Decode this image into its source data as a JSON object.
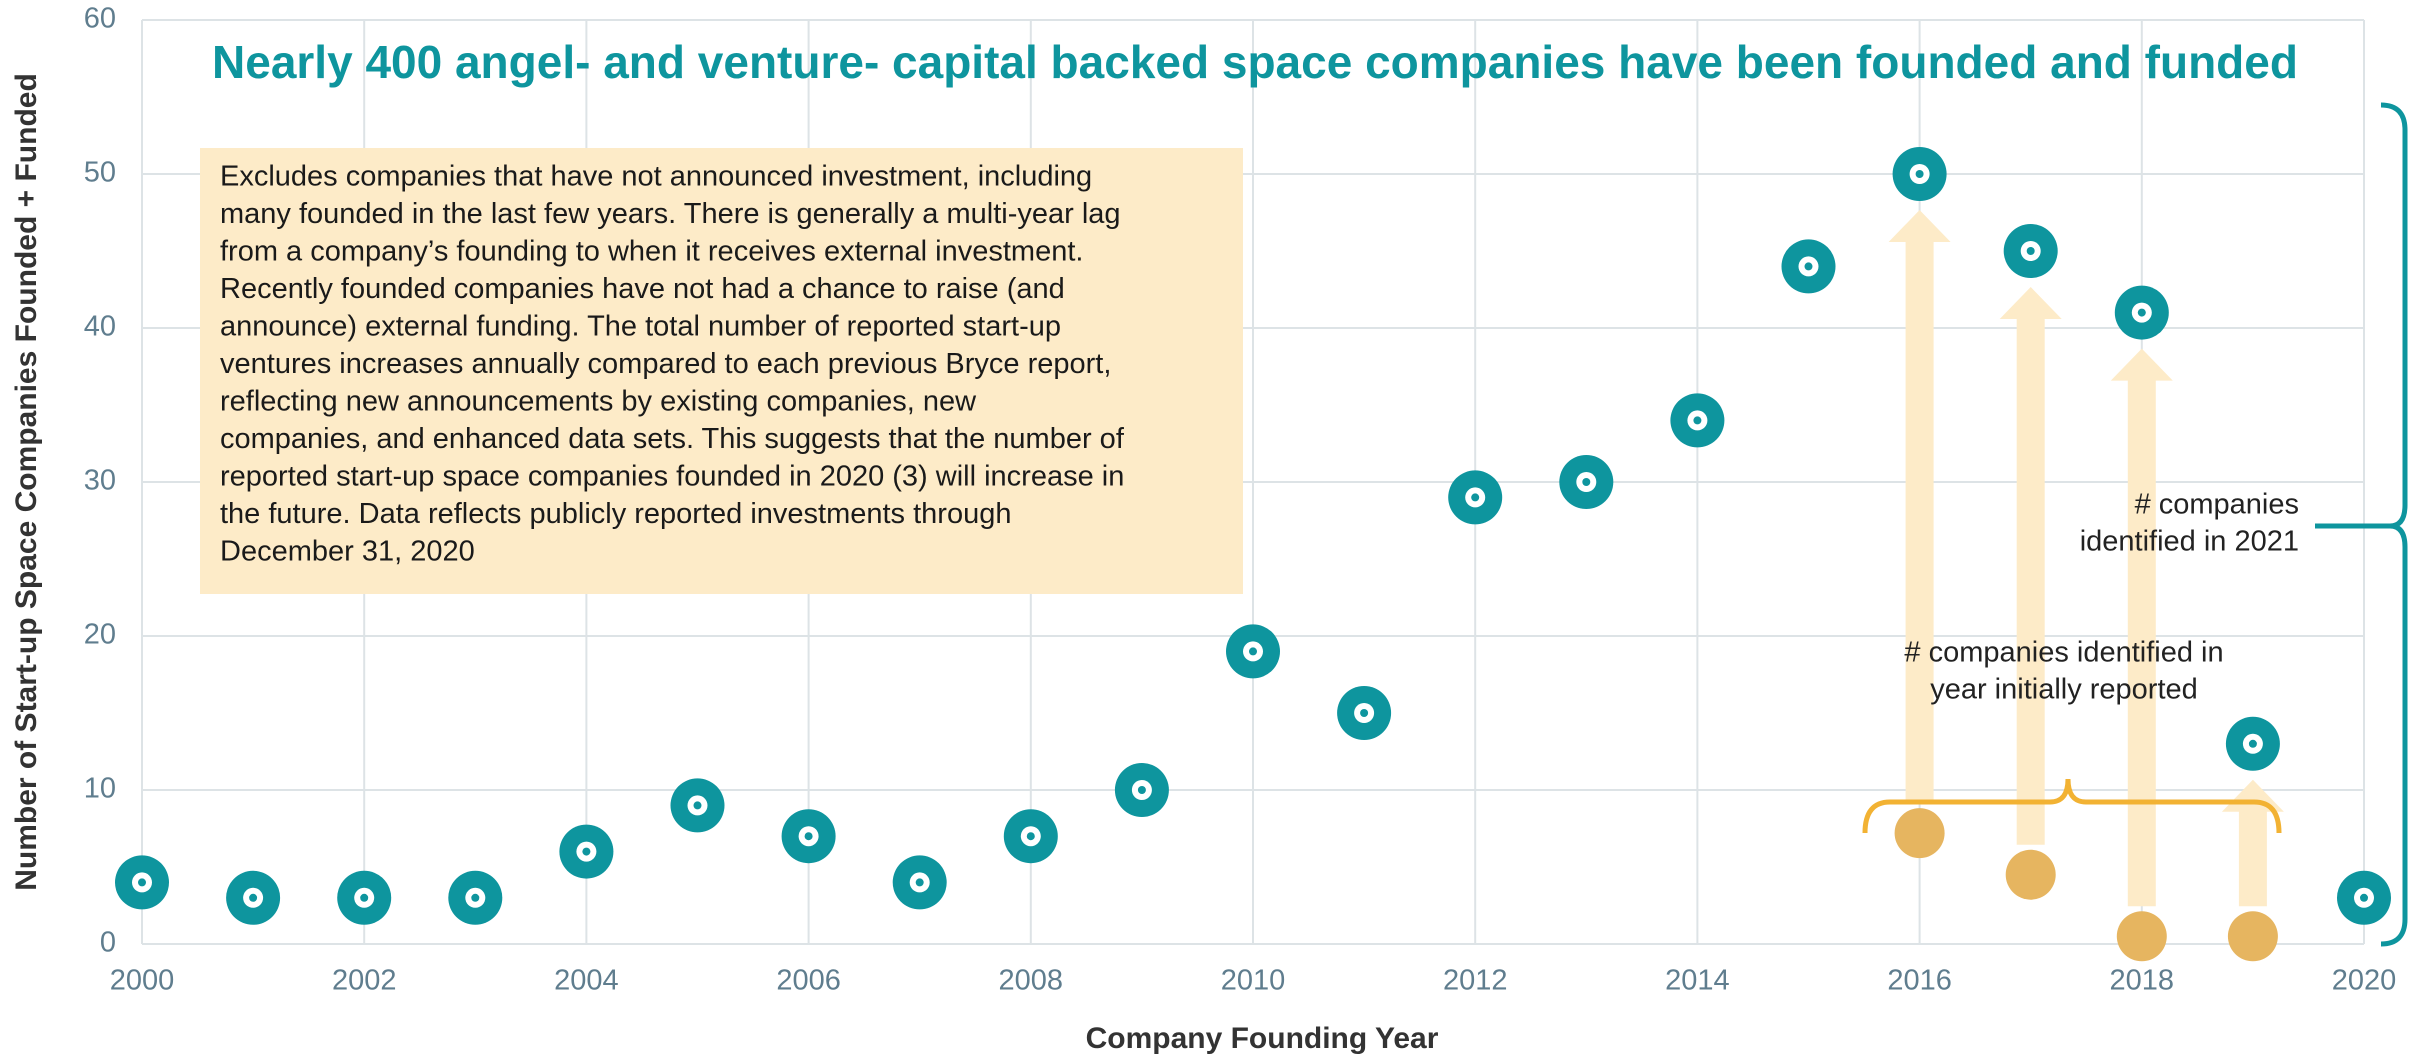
{
  "chart_data": {
    "type": "scatter",
    "title": "Nearly 400 angel- and venture- capital backed space companies have been founded and funded",
    "x_label": "Company Founding Year",
    "y_label": "Number of Start-up Space Companies Founded + Funded",
    "series": [
      {
        "color": "#0e959e",
        "x": [
          2000,
          2001,
          2002,
          2003,
          2004,
          2005,
          2006,
          2007,
          2008,
          2009,
          2010,
          2011,
          2012,
          2013,
          2014,
          2015,
          2016,
          2017,
          2018,
          2019,
          2020
        ],
        "values": [
          4,
          3,
          3,
          3,
          6,
          9,
          7,
          4,
          7,
          10,
          19,
          15,
          29,
          30,
          34,
          44,
          50,
          45,
          41,
          13,
          3
        ]
      },
      {
        "color": "#e6b560",
        "x": [
          2016,
          2017,
          2018,
          2019
        ],
        "values": [
          7.2,
          4.5,
          0.5,
          0.5
        ]
      }
    ],
    "xlim": [
      2000,
      2020
    ],
    "xticks": [
      2000,
      2002,
      2004,
      2006,
      2008,
      2010,
      2012,
      2014,
      2016,
      2018,
      2020
    ],
    "ylim": [
      0,
      60
    ],
    "yticks": [
      0,
      10,
      20,
      30,
      40,
      50,
      60
    ],
    "grid": true,
    "note_lines": [
      "Excludes companies that have not announced investment, including",
      "many founded in the last few years. There is generally a multi-year lag",
      "from a company’s founding to when it receives external investment.",
      "Recently founded companies have not had a chance to raise (and",
      "announce) external funding. The total number of reported start-up",
      "ventures increases annually compared to each previous Bryce report,",
      "reflecting new announcements by existing companies, new",
      "companies, and enhanced data sets. This suggests that the number of",
      "reported start-up space companies founded in 2020 (3) will increase in",
      "the future. Data reflects publicly reported investments through",
      "December 31, 2020"
    ],
    "annotation_2021": [
      "# companies",
      "identified in 2021"
    ],
    "annotation_initial": [
      "# companies identified in",
      "year initially reported"
    ]
  }
}
